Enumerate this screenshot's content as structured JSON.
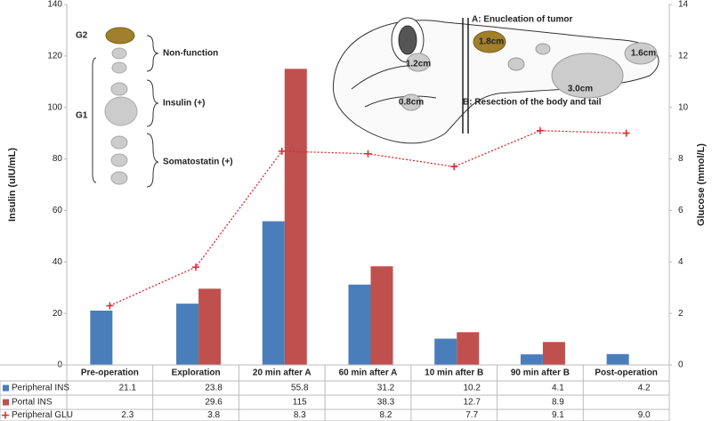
{
  "chart_data": {
    "type": "bar",
    "categories": [
      "Pre-operation",
      "Exploration",
      "20 min after A",
      "60 min after A",
      "10 min after B",
      "90 min after B",
      "Post-operation"
    ],
    "series": [
      {
        "name": "Peripheral INS",
        "color": "#4a7ebb",
        "values": [
          21.1,
          23.8,
          55.8,
          31.2,
          10.2,
          4.1,
          4.2
        ]
      },
      {
        "name": "Portal INS",
        "color": "#c0504d",
        "values": [
          null,
          29.6,
          115,
          38.3,
          12.7,
          8.9,
          null
        ]
      },
      {
        "name": "Peripheral GLU",
        "color": "#e0262c",
        "axis": "y2",
        "type": "line",
        "values": [
          2.3,
          3.8,
          8.3,
          8.2,
          7.7,
          9.1,
          9
        ],
        "value_labels": [
          "2.3",
          "3.8",
          "8.3",
          "8.2",
          "7.7",
          "9.1",
          "9.0"
        ]
      }
    ],
    "ylabel": "Insulin (uIU/mL)",
    "y2label": "Glucose (mmol/L)",
    "ylim": [
      0,
      140
    ],
    "yticks": [
      0,
      20,
      40,
      60,
      80,
      100,
      120,
      140
    ],
    "y2lim": [
      0,
      14
    ],
    "y2ticks": [
      0,
      2,
      4,
      6,
      8,
      10,
      12,
      14
    ],
    "annotations": [
      "G2",
      "G1",
      "Non-function",
      "Insulin (+)",
      "Somatostatin (+)",
      "A: Enucleation of tumor",
      "B: Resection of the body and tail",
      "1.8cm",
      "1.2cm",
      "0.8cm",
      "3.0cm",
      "1.6cm"
    ]
  }
}
